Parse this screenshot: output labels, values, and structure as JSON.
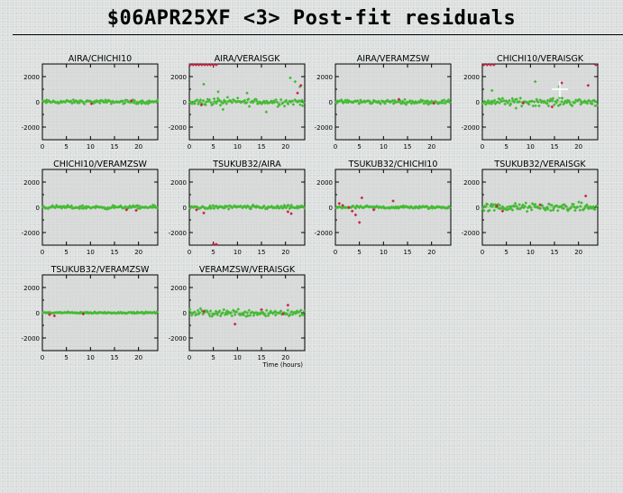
{
  "title": "$06APR25XF <3> Post-fit residuals",
  "xlabel": "Time (hours)",
  "colors": {
    "good": "#44bb33",
    "flagged": "#cc2244",
    "axis": "#000000",
    "plot_bg": "#d4d4d4"
  },
  "chart_data": {
    "type": "scatter",
    "xlim": [
      0,
      24
    ],
    "ylim": [
      -3000,
      3000
    ],
    "xticks": [
      0,
      5,
      10,
      15,
      20
    ],
    "yticks": [
      2000,
      0,
      -2000
    ],
    "xlabel": "Time (hours)",
    "panels": [
      {
        "name": "AIRA/CHICHI10",
        "good_spread": 220,
        "good_count": 110,
        "flagged": [
          [
            10.2,
            -150
          ],
          [
            18.5,
            90
          ]
        ]
      },
      {
        "name": "AIRA/VERAISGK",
        "good_spread": 450,
        "good_count": 110,
        "top_edge": [
          0.2,
          0.8,
          1.4,
          2.0,
          2.6,
          3.2,
          3.8,
          4.4,
          5.0,
          5.6
        ],
        "scatter_good": [
          [
            3,
            1400
          ],
          [
            6,
            800
          ],
          [
            7,
            -600
          ],
          [
            12,
            700
          ],
          [
            16,
            -800
          ],
          [
            21,
            1900
          ],
          [
            22,
            1600
          ],
          [
            23,
            1200
          ]
        ],
        "flagged": [
          [
            2.5,
            -250
          ],
          [
            22.5,
            700
          ],
          [
            23.2,
            1300
          ]
        ]
      },
      {
        "name": "AIRA/VERAMZSW",
        "good_spread": 240,
        "good_count": 110,
        "flagged": [
          [
            13.2,
            200
          ],
          [
            20.5,
            -120
          ]
        ]
      },
      {
        "name": "CHICHI10/VERAISGK",
        "good_spread": 440,
        "good_count": 110,
        "top_edge": [
          0.3,
          1.0,
          1.7,
          2.4,
          23.6
        ],
        "scatter_good": [
          [
            2,
            900
          ],
          [
            7,
            -500
          ],
          [
            11,
            1600
          ],
          [
            16,
            1200
          ]
        ],
        "flagged": [
          [
            8.5,
            -100
          ],
          [
            14.5,
            -400
          ],
          [
            16.5,
            1500
          ],
          [
            22.0,
            1300
          ]
        ]
      },
      {
        "name": "CHICHI10/VERAMZSW",
        "good_spread": 200,
        "good_count": 110,
        "flagged": [
          [
            17.5,
            -200
          ],
          [
            19.5,
            -250
          ]
        ]
      },
      {
        "name": "TSUKUB32/AIRA",
        "good_spread": 230,
        "good_count": 110,
        "bottom_edge": [
          5.0,
          5.6
        ],
        "flagged": [
          [
            1.5,
            -200
          ],
          [
            3.0,
            -450
          ],
          [
            20.5,
            -350
          ],
          [
            21.2,
            -500
          ]
        ]
      },
      {
        "name": "TSUKUB32/CHICHI10",
        "good_spread": 180,
        "good_count": 110,
        "flagged": [
          [
            0.8,
            300
          ],
          [
            1.5,
            150
          ],
          [
            2.8,
            0
          ],
          [
            3.5,
            -300
          ],
          [
            4.2,
            -600
          ],
          [
            5.0,
            -1200
          ],
          [
            5.5,
            750
          ],
          [
            8.0,
            -200
          ],
          [
            12.0,
            500
          ]
        ]
      },
      {
        "name": "TSUKUB32/VERAISGK",
        "good_spread": 480,
        "good_count": 120,
        "flagged": [
          [
            3.0,
            100
          ],
          [
            4.2,
            -300
          ],
          [
            12.0,
            200
          ],
          [
            21.5,
            900
          ]
        ]
      },
      {
        "name": "TSUKUB32/VERAMZSW",
        "good_spread": 90,
        "good_count": 110,
        "flagged": [
          [
            1.5,
            -150
          ],
          [
            2.5,
            -250
          ],
          [
            8.5,
            -100
          ]
        ]
      },
      {
        "name": "VERAMZSW/VERAISGK",
        "good_spread": 460,
        "good_count": 115,
        "flagged": [
          [
            3.0,
            100
          ],
          [
            9.5,
            -900
          ],
          [
            15.0,
            250
          ],
          [
            19.5,
            -100
          ],
          [
            20.5,
            600
          ]
        ]
      }
    ]
  }
}
